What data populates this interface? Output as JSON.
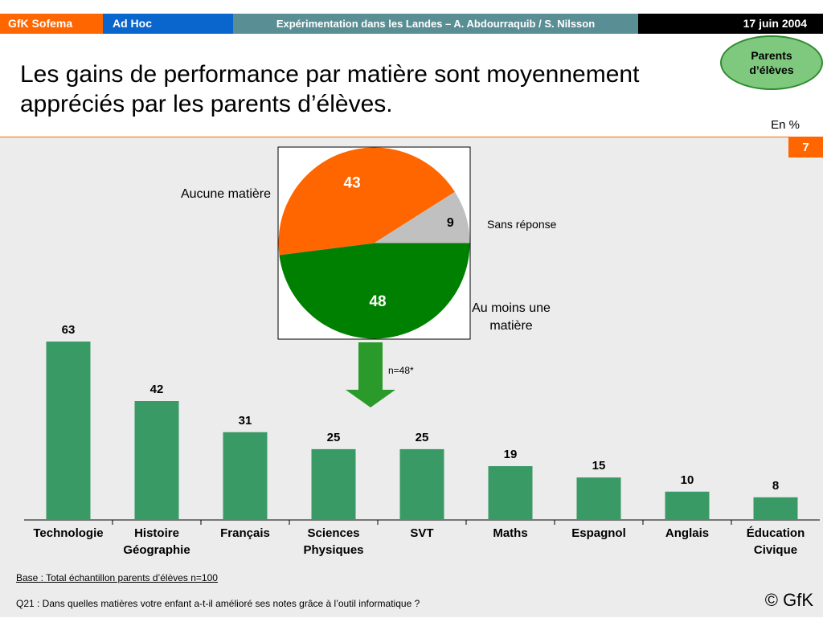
{
  "header": {
    "brand": "GfK Sofema",
    "section": "Ad Hoc",
    "study": "Expérimentation dans les Landes – A. Abdourraquib / S. Nilsson",
    "date": "17 juin 2004"
  },
  "title": "Les gains de performance par matière sont moyennement appréciés par les parents d’élèves.",
  "badge": "Parents d’élèves",
  "unit_label": "En %",
  "page_number": "7",
  "colors": {
    "bar": "#3a9a66",
    "pie_none": "#ff6600",
    "pie_no_answer": "#c0c0c0",
    "pie_at_least_one": "#008000",
    "arrow": "#2a9a2a",
    "accent": "#ff6600"
  },
  "chart_data": [
    {
      "type": "pie",
      "slices": [
        {
          "label": "Aucune matière",
          "value": 43,
          "color": "#ff6600"
        },
        {
          "label": "Sans réponse",
          "value": 9,
          "color": "#c0c0c0"
        },
        {
          "label": "Au moins une matière",
          "value": 48,
          "color": "#008000"
        }
      ]
    },
    {
      "type": "bar",
      "annotation": "n=48*",
      "categories": [
        "Technologie",
        "Histoire Géographie",
        "Français",
        "Sciences Physiques",
        "SVT",
        "Maths",
        "Espagnol",
        "Anglais",
        "Éducation Civique"
      ],
      "category_lines": [
        [
          "Technologie"
        ],
        [
          "Histoire",
          "Géographie"
        ],
        [
          "Français"
        ],
        [
          "Sciences",
          "Physiques"
        ],
        [
          "SVT"
        ],
        [
          "Maths"
        ],
        [
          "Espagnol"
        ],
        [
          "Anglais"
        ],
        [
          "Éducation",
          "Civique"
        ]
      ],
      "values": [
        63,
        42,
        31,
        25,
        25,
        19,
        15,
        10,
        8
      ],
      "ylim": [
        0,
        63
      ]
    }
  ],
  "footer": {
    "base": "Base : Total échantillon parents d’élèves n=100",
    "question": "Q21 : Dans quelles matières votre enfant a-t-il amélioré ses notes grâce à l’outil informatique ?",
    "copyright": "© GfK"
  }
}
